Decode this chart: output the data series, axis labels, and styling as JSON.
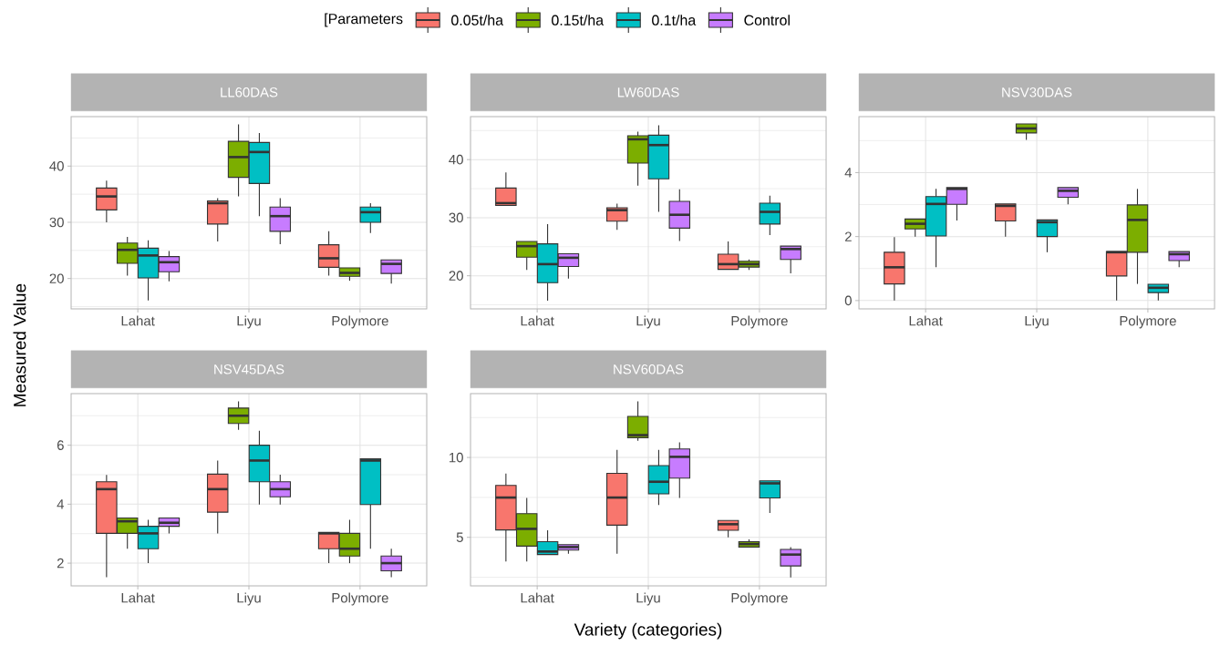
{
  "chart_data": [
    {
      "type": "box",
      "title": "LL60DAS",
      "categories": [
        "Lahat",
        "Liyu",
        "Polymore"
      ],
      "ylim": [
        14.6,
        48.8
      ],
      "yticks": [
        20,
        30,
        40
      ],
      "grid": true,
      "legend": "top",
      "legend_title": "[Parameters",
      "ylabel": "Measured Value",
      "series": [
        {
          "name": "0.05t/ha",
          "color": "#F8766D",
          "boxes": [
            {
              "low": 30.0,
              "q1": 32.2,
              "median": 34.6,
              "q3": 36.1,
              "high": 37.4
            },
            {
              "low": 26.6,
              "q1": 29.7,
              "median": 33.4,
              "q3": 33.8,
              "high": 34.3
            },
            {
              "low": 20.5,
              "q1": 22.0,
              "median": 23.6,
              "q3": 26.0,
              "high": 28.4
            }
          ]
        },
        {
          "name": "0.15t/ha",
          "color": "#7CAE00",
          "boxes": [
            {
              "low": 20.5,
              "q1": 22.7,
              "median": 25.1,
              "q3": 26.3,
              "high": 27.4
            },
            {
              "low": 34.6,
              "q1": 38.0,
              "median": 41.6,
              "q3": 44.4,
              "high": 47.4
            },
            {
              "low": 19.6,
              "q1": 20.4,
              "median": 21.0,
              "q3": 21.9,
              "high": 21.9
            }
          ]
        },
        {
          "name": "0.1t/ha",
          "color": "#00BFC4",
          "boxes": [
            {
              "low": 16.1,
              "q1": 20.1,
              "median": 24.1,
              "q3": 25.4,
              "high": 26.8
            },
            {
              "low": 31.1,
              "q1": 36.9,
              "median": 42.5,
              "q3": 44.2,
              "high": 45.9
            },
            {
              "low": 28.1,
              "q1": 30.0,
              "median": 31.8,
              "q3": 32.7,
              "high": 33.4
            }
          ]
        },
        {
          "name": "Control",
          "color": "#C77CFF",
          "boxes": [
            {
              "low": 19.5,
              "q1": 21.2,
              "median": 22.9,
              "q3": 23.9,
              "high": 24.9
            },
            {
              "low": 26.1,
              "q1": 28.4,
              "median": 31.1,
              "q3": 32.7,
              "high": 34.3
            },
            {
              "low": 19.1,
              "q1": 20.9,
              "median": 22.6,
              "q3": 23.3,
              "high": 23.3
            }
          ]
        }
      ]
    },
    {
      "type": "box",
      "title": "LW60DAS",
      "categories": [
        "Lahat",
        "Liyu",
        "Polymore"
      ],
      "ylim": [
        14.3,
        47.4
      ],
      "yticks": [
        20,
        30,
        40
      ],
      "grid": true,
      "series": [
        {
          "color": "#F8766D",
          "boxes": [
            {
              "low": 32.1,
              "q1": 32.1,
              "median": 32.5,
              "q3": 35.1,
              "high": 37.8
            },
            {
              "low": 27.9,
              "q1": 29.4,
              "median": 31.3,
              "q3": 31.7,
              "high": 32.4
            },
            {
              "low": 21.1,
              "q1": 21.1,
              "median": 22.0,
              "q3": 23.7,
              "high": 25.9
            }
          ]
        },
        {
          "color": "#7CAE00",
          "boxes": [
            {
              "low": 21.0,
              "q1": 23.2,
              "median": 25.1,
              "q3": 25.9,
              "high": 25.9
            },
            {
              "low": 35.5,
              "q1": 39.4,
              "median": 43.5,
              "q3": 44.1,
              "high": 44.8
            },
            {
              "low": 21.0,
              "q1": 21.5,
              "median": 22.0,
              "q3": 22.5,
              "high": 22.8
            }
          ]
        },
        {
          "color": "#00BFC4",
          "boxes": [
            {
              "low": 15.7,
              "q1": 18.8,
              "median": 22.0,
              "q3": 25.5,
              "high": 28.9
            },
            {
              "low": 31.0,
              "q1": 36.7,
              "median": 42.5,
              "q3": 44.2,
              "high": 45.9
            },
            {
              "low": 27.0,
              "q1": 28.9,
              "median": 31.0,
              "q3": 32.5,
              "high": 33.8
            }
          ]
        },
        {
          "color": "#C77CFF",
          "boxes": [
            {
              "low": 19.5,
              "q1": 21.6,
              "median": 23.1,
              "q3": 23.8,
              "high": 23.8
            },
            {
              "low": 26.0,
              "q1": 28.2,
              "median": 30.5,
              "q3": 32.8,
              "high": 34.9
            },
            {
              "low": 20.4,
              "q1": 22.8,
              "median": 24.6,
              "q3": 25.1,
              "high": 25.1
            }
          ]
        }
      ]
    },
    {
      "type": "box",
      "title": "NSV30DAS",
      "categories": [
        "Lahat",
        "Liyu",
        "Polymore"
      ],
      "ylim": [
        -0.26,
        5.75
      ],
      "yticks": [
        0,
        2,
        4
      ],
      "grid": true,
      "series": [
        {
          "color": "#F8766D",
          "boxes": [
            {
              "low": 0.0,
              "q1": 0.52,
              "median": 1.04,
              "q3": 1.51,
              "high": 1.98
            },
            {
              "low": 2.0,
              "q1": 2.49,
              "median": 2.96,
              "q3": 3.02,
              "high": 3.02
            },
            {
              "low": 0.0,
              "q1": 0.77,
              "median": 1.51,
              "q3": 1.53,
              "high": 1.53
            }
          ]
        },
        {
          "color": "#7CAE00",
          "boxes": [
            {
              "low": 2.0,
              "q1": 2.24,
              "median": 2.4,
              "q3": 2.55,
              "high": 2.55
            },
            {
              "low": 5.02,
              "q1": 5.24,
              "median": 5.38,
              "q3": 5.52,
              "high": 5.52
            },
            {
              "low": 0.52,
              "q1": 1.51,
              "median": 2.52,
              "q3": 2.99,
              "high": 3.49
            }
          ]
        },
        {
          "color": "#00BFC4",
          "boxes": [
            {
              "low": 1.04,
              "q1": 2.02,
              "median": 3.02,
              "q3": 3.25,
              "high": 3.49
            },
            {
              "low": 1.51,
              "q1": 2.0,
              "median": 2.45,
              "q3": 2.52,
              "high": 2.52
            },
            {
              "low": 0.0,
              "q1": 0.25,
              "median": 0.4,
              "q3": 0.51,
              "high": 0.51
            }
          ]
        },
        {
          "color": "#C77CFF",
          "boxes": [
            {
              "low": 2.5,
              "q1": 3.01,
              "median": 3.49,
              "q3": 3.53,
              "high": 3.53
            },
            {
              "low": 3.01,
              "q1": 3.23,
              "median": 3.43,
              "q3": 3.53,
              "high": 3.53
            },
            {
              "low": 1.04,
              "q1": 1.25,
              "median": 1.45,
              "q3": 1.53,
              "high": 1.53
            }
          ]
        }
      ]
    },
    {
      "type": "box",
      "title": "NSV45DAS",
      "categories": [
        "Lahat",
        "Liyu",
        "Polymore"
      ],
      "ylim": [
        1.23,
        7.75
      ],
      "yticks": [
        2,
        4,
        6
      ],
      "grid": true,
      "series": [
        {
          "color": "#F8766D",
          "boxes": [
            {
              "low": 1.52,
              "q1": 3.01,
              "median": 4.51,
              "q3": 4.76,
              "high": 4.99
            },
            {
              "low": 3.01,
              "q1": 3.73,
              "median": 4.51,
              "q3": 5.02,
              "high": 5.48
            },
            {
              "low": 2.0,
              "q1": 2.49,
              "median": 3.01,
              "q3": 3.04,
              "high": 3.04
            }
          ]
        },
        {
          "color": "#7CAE00",
          "boxes": [
            {
              "low": 2.49,
              "q1": 3.01,
              "median": 3.42,
              "q3": 3.53,
              "high": 3.53
            },
            {
              "low": 6.52,
              "q1": 6.74,
              "median": 7.0,
              "q3": 7.26,
              "high": 7.49
            },
            {
              "low": 2.0,
              "q1": 2.24,
              "median": 2.49,
              "q3": 3.01,
              "high": 3.47
            }
          ]
        },
        {
          "color": "#00BFC4",
          "boxes": [
            {
              "low": 2.0,
              "q1": 2.49,
              "median": 3.01,
              "q3": 3.25,
              "high": 3.47
            },
            {
              "low": 3.99,
              "q1": 4.76,
              "median": 5.48,
              "q3": 6.0,
              "high": 6.49
            },
            {
              "low": 2.49,
              "q1": 3.99,
              "median": 5.48,
              "q3": 5.54,
              "high": 5.54
            }
          ]
        },
        {
          "color": "#C77CFF",
          "boxes": [
            {
              "low": 3.01,
              "q1": 3.25,
              "median": 3.37,
              "q3": 3.53,
              "high": 3.53
            },
            {
              "low": 3.99,
              "q1": 4.25,
              "median": 4.51,
              "q3": 4.76,
              "high": 5.0
            },
            {
              "low": 1.52,
              "q1": 1.74,
              "median": 2.0,
              "q3": 2.24,
              "high": 2.49
            }
          ]
        }
      ]
    },
    {
      "type": "box",
      "title": "NSV60DAS",
      "categories": [
        "Lahat",
        "Liyu",
        "Polymore"
      ],
      "ylim": [
        1.96,
        14.0
      ],
      "yticks": [
        5,
        10
      ],
      "grid": true,
      "xlabel": "Variety (categories)",
      "series": [
        {
          "color": "#F8766D",
          "boxes": [
            {
              "low": 3.48,
              "q1": 5.46,
              "median": 7.49,
              "q3": 8.25,
              "high": 8.99
            },
            {
              "low": 3.97,
              "q1": 5.76,
              "median": 7.49,
              "q3": 9.01,
              "high": 10.48
            },
            {
              "low": 5.0,
              "q1": 5.44,
              "median": 5.82,
              "q3": 6.05,
              "high": 6.05
            }
          ]
        },
        {
          "color": "#7CAE00",
          "boxes": [
            {
              "low": 3.48,
              "q1": 4.45,
              "median": 5.53,
              "q3": 6.48,
              "high": 7.47
            },
            {
              "low": 11.05,
              "q1": 11.24,
              "median": 11.4,
              "q3": 12.57,
              "high": 13.52
            },
            {
              "low": 4.39,
              "q1": 4.39,
              "median": 4.58,
              "q3": 4.73,
              "high": 4.87
            }
          ]
        },
        {
          "color": "#00BFC4",
          "boxes": [
            {
              "low": 3.92,
              "q1": 3.92,
              "median": 4.11,
              "q3": 4.73,
              "high": 5.44
            },
            {
              "low": 7.02,
              "q1": 7.72,
              "median": 8.48,
              "q3": 9.49,
              "high": 10.48
            },
            {
              "low": 6.52,
              "q1": 7.47,
              "median": 8.38,
              "q3": 8.54,
              "high": 8.54
            }
          ]
        },
        {
          "color": "#C77CFF",
          "boxes": [
            {
              "low": 3.97,
              "q1": 4.2,
              "median": 4.39,
              "q3": 4.54,
              "high": 4.54
            },
            {
              "low": 7.47,
              "q1": 8.71,
              "median": 10.04,
              "q3": 10.53,
              "high": 10.95
            },
            {
              "low": 2.49,
              "q1": 3.21,
              "median": 3.92,
              "q3": 4.24,
              "high": 4.39
            }
          ]
        }
      ]
    }
  ]
}
